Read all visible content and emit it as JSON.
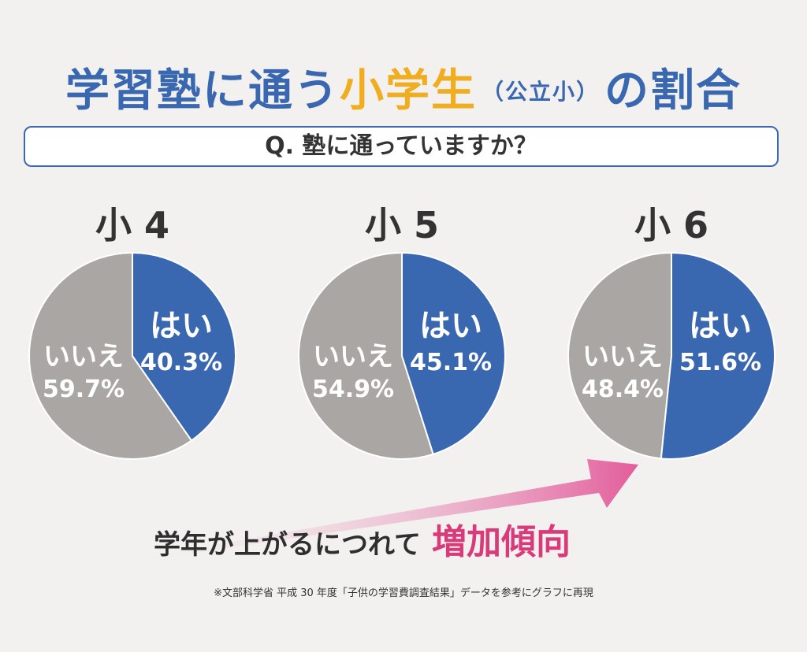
{
  "title": {
    "part1": "学習塾に通う",
    "part2": "小学生",
    "part3": "（公立小）",
    "part4": "の割合"
  },
  "question": "Q. 塾に通っていますか？",
  "colors": {
    "yes": "#3a68b0",
    "no": "#aaa6a3",
    "title": "#3a68b0",
    "accent": "#f0ad1f",
    "trend": "#d93b7a"
  },
  "chart_data": [
    {
      "type": "pie",
      "title": "小 4",
      "slices": [
        {
          "label": "はい",
          "value": 40.3,
          "value_label": "40.3%"
        },
        {
          "label": "いいえ",
          "value": 59.7,
          "value_label": "59.7%"
        }
      ]
    },
    {
      "type": "pie",
      "title": "小 5",
      "slices": [
        {
          "label": "はい",
          "value": 45.1,
          "value_label": "45.1%"
        },
        {
          "label": "いいえ",
          "value": 54.9,
          "value_label": "54.9%"
        }
      ]
    },
    {
      "type": "pie",
      "title": "小 6",
      "slices": [
        {
          "label": "はい",
          "value": 51.6,
          "value_label": "51.6%"
        },
        {
          "label": "いいえ",
          "value": 48.4,
          "value_label": "48.4%"
        }
      ]
    }
  ],
  "trend": {
    "text": "学年が上がるにつれて",
    "highlight": "増加傾向"
  },
  "footnote": "※文部科学省 平成 30 年度「子供の学習費調査結果」データを参考にグラフに再現"
}
